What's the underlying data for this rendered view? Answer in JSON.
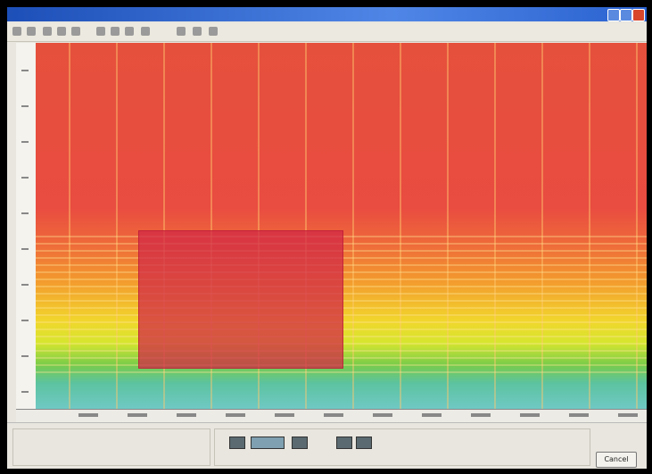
{
  "dialog": {
    "cancel_button": "Cancel"
  }
}
